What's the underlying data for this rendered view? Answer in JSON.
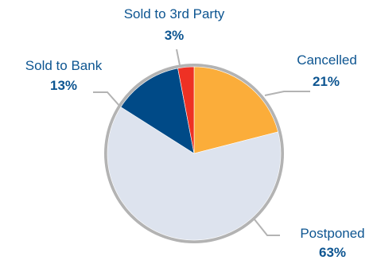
{
  "chart_data": {
    "type": "pie",
    "title": "",
    "slices": [
      {
        "label": "Cancelled",
        "value": 21,
        "display": "21%",
        "color": "#fbad3a"
      },
      {
        "label": "Postponed",
        "value": 63,
        "display": "63%",
        "color": "#dde3ee"
      },
      {
        "label": "Sold to Bank",
        "value": 13,
        "display": "13%",
        "color": "#004a87"
      },
      {
        "label": "Sold to 3rd Party",
        "value": 3,
        "display": "3%",
        "color": "#ee3124"
      }
    ],
    "start_angle_deg": 0,
    "direction": "clockwise",
    "rim_color": "#b3b3b3",
    "leader_color": "#b3b3b3",
    "text_color": "#0d5591"
  }
}
